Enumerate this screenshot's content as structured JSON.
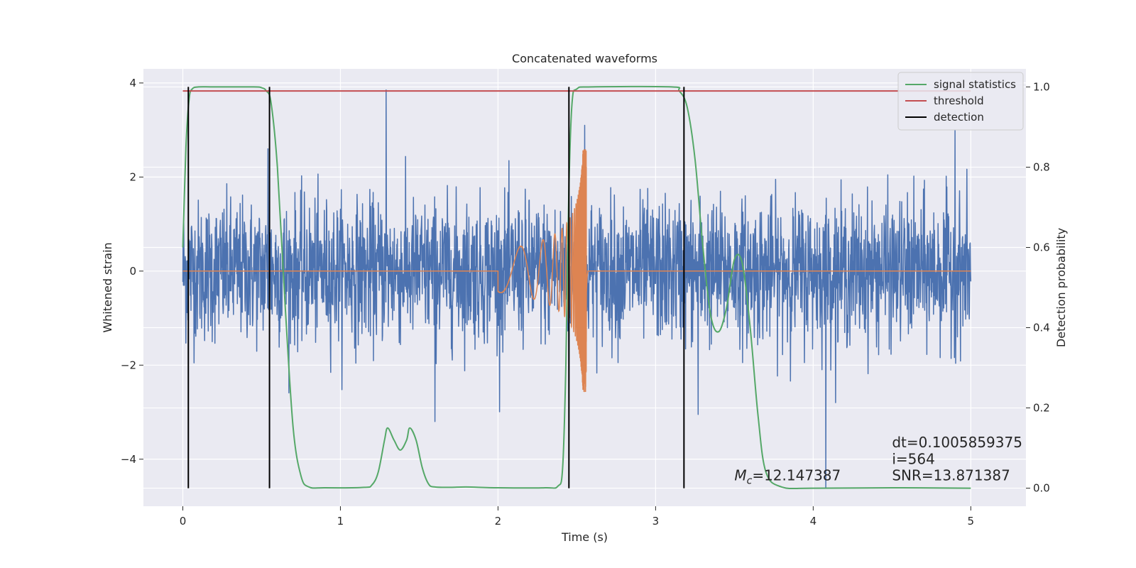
{
  "chart_data": {
    "type": "line",
    "title": "Concatenated waveforms",
    "xlabel": "Time (s)",
    "ylabel": "Whitened strain",
    "y2label": "Detection probability",
    "xlim": [
      -0.25,
      5.35
    ],
    "ylim": [
      -5.0,
      4.3
    ],
    "y2lim": [
      -0.045,
      1.045
    ],
    "x_ticks": [
      0,
      1,
      2,
      3,
      4,
      5
    ],
    "y_ticks": [
      -4,
      -2,
      0,
      2,
      4
    ],
    "y2_ticks": [
      0.0,
      0.2,
      0.4,
      0.6,
      0.8,
      1.0
    ],
    "x_tick_labels": [
      "0",
      "1",
      "2",
      "3",
      "4",
      "5"
    ],
    "y_tick_labels": [
      "−4",
      "−2",
      "0",
      "2",
      "4"
    ],
    "y2_tick_labels": [
      "0.0",
      "0.2",
      "0.4",
      "0.6",
      "0.8",
      "1.0"
    ],
    "grid": true,
    "legend_position": "top-right",
    "series": [
      {
        "name": "",
        "color": "#4c72b0",
        "axis": "left",
        "kind": "noise",
        "x_range": [
          0,
          5
        ],
        "typical_amplitude": 1.2,
        "peaks": [
          [
            1.29,
            3.85
          ],
          [
            2.55,
            3.1
          ],
          [
            0.54,
            2.6
          ],
          [
            4.9,
            3.0
          ],
          [
            4.08,
            -4.6
          ],
          [
            2.45,
            -3.4
          ],
          [
            3.27,
            -3.05
          ],
          [
            1.6,
            -3.2
          ]
        ]
      },
      {
        "name": "",
        "color": "#dd8452",
        "axis": "left",
        "kind": "chirp",
        "t_start": 2.0,
        "t_merger": 2.56,
        "t_end": 2.57,
        "amp_start": 0.45,
        "amp_peak": 2.6
      },
      {
        "name": "signal statistics",
        "color": "#55a868",
        "axis": "right",
        "x": [
          0.0,
          0.02,
          0.04,
          0.06,
          0.1,
          0.2,
          0.45,
          0.5,
          0.53,
          0.56,
          0.6,
          0.65,
          0.7,
          0.75,
          0.8,
          0.9,
          1.15,
          1.2,
          1.24,
          1.28,
          1.3,
          1.34,
          1.38,
          1.42,
          1.44,
          1.48,
          1.52,
          1.56,
          1.6,
          1.7,
          1.8,
          2.0,
          2.3,
          2.38,
          2.41,
          2.43,
          2.45,
          2.47,
          2.5,
          2.6,
          3.1,
          3.15,
          3.2,
          3.25,
          3.3,
          3.35,
          3.4,
          3.45,
          3.5,
          3.55,
          3.6,
          3.65,
          3.7,
          3.8,
          4.0,
          4.5,
          5.0
        ],
        "y": [
          0.6,
          0.85,
          0.97,
          0.995,
          1.0,
          1.0,
          1.0,
          0.998,
          0.99,
          0.96,
          0.8,
          0.45,
          0.15,
          0.03,
          0.003,
          0.001,
          0.002,
          0.008,
          0.04,
          0.12,
          0.15,
          0.12,
          0.095,
          0.12,
          0.15,
          0.12,
          0.05,
          0.01,
          0.003,
          0.002,
          0.003,
          0.001,
          0.001,
          0.005,
          0.05,
          0.3,
          0.75,
          0.96,
          0.995,
          1.0,
          1.0,
          0.99,
          0.95,
          0.82,
          0.6,
          0.43,
          0.39,
          0.45,
          0.57,
          0.56,
          0.4,
          0.18,
          0.04,
          0.003,
          0.0,
          0.001,
          0.0
        ]
      },
      {
        "name": "threshold",
        "color": "#c44e52",
        "axis": "right",
        "x": [
          0,
          5
        ],
        "y": [
          0.99,
          0.99
        ]
      },
      {
        "name": "detection",
        "color": "#000000",
        "axis": "right",
        "kind": "vlines",
        "x": [
          0.035,
          0.55,
          2.45,
          3.18
        ],
        "y_range": [
          0.0,
          1.0
        ]
      }
    ],
    "annotations": [
      {
        "text": "dt=0.1005859375",
        "x": 4.5,
        "y": -3.75
      },
      {
        "text": " i=564",
        "x": 4.5,
        "y": -4.1
      },
      {
        "text": "SNR=13.871387",
        "x": 4.5,
        "y": -4.45
      },
      {
        "text": "=12.147387",
        "prefix": "M",
        "subscript": "c",
        "x": 3.5,
        "y": -4.45
      }
    ]
  }
}
